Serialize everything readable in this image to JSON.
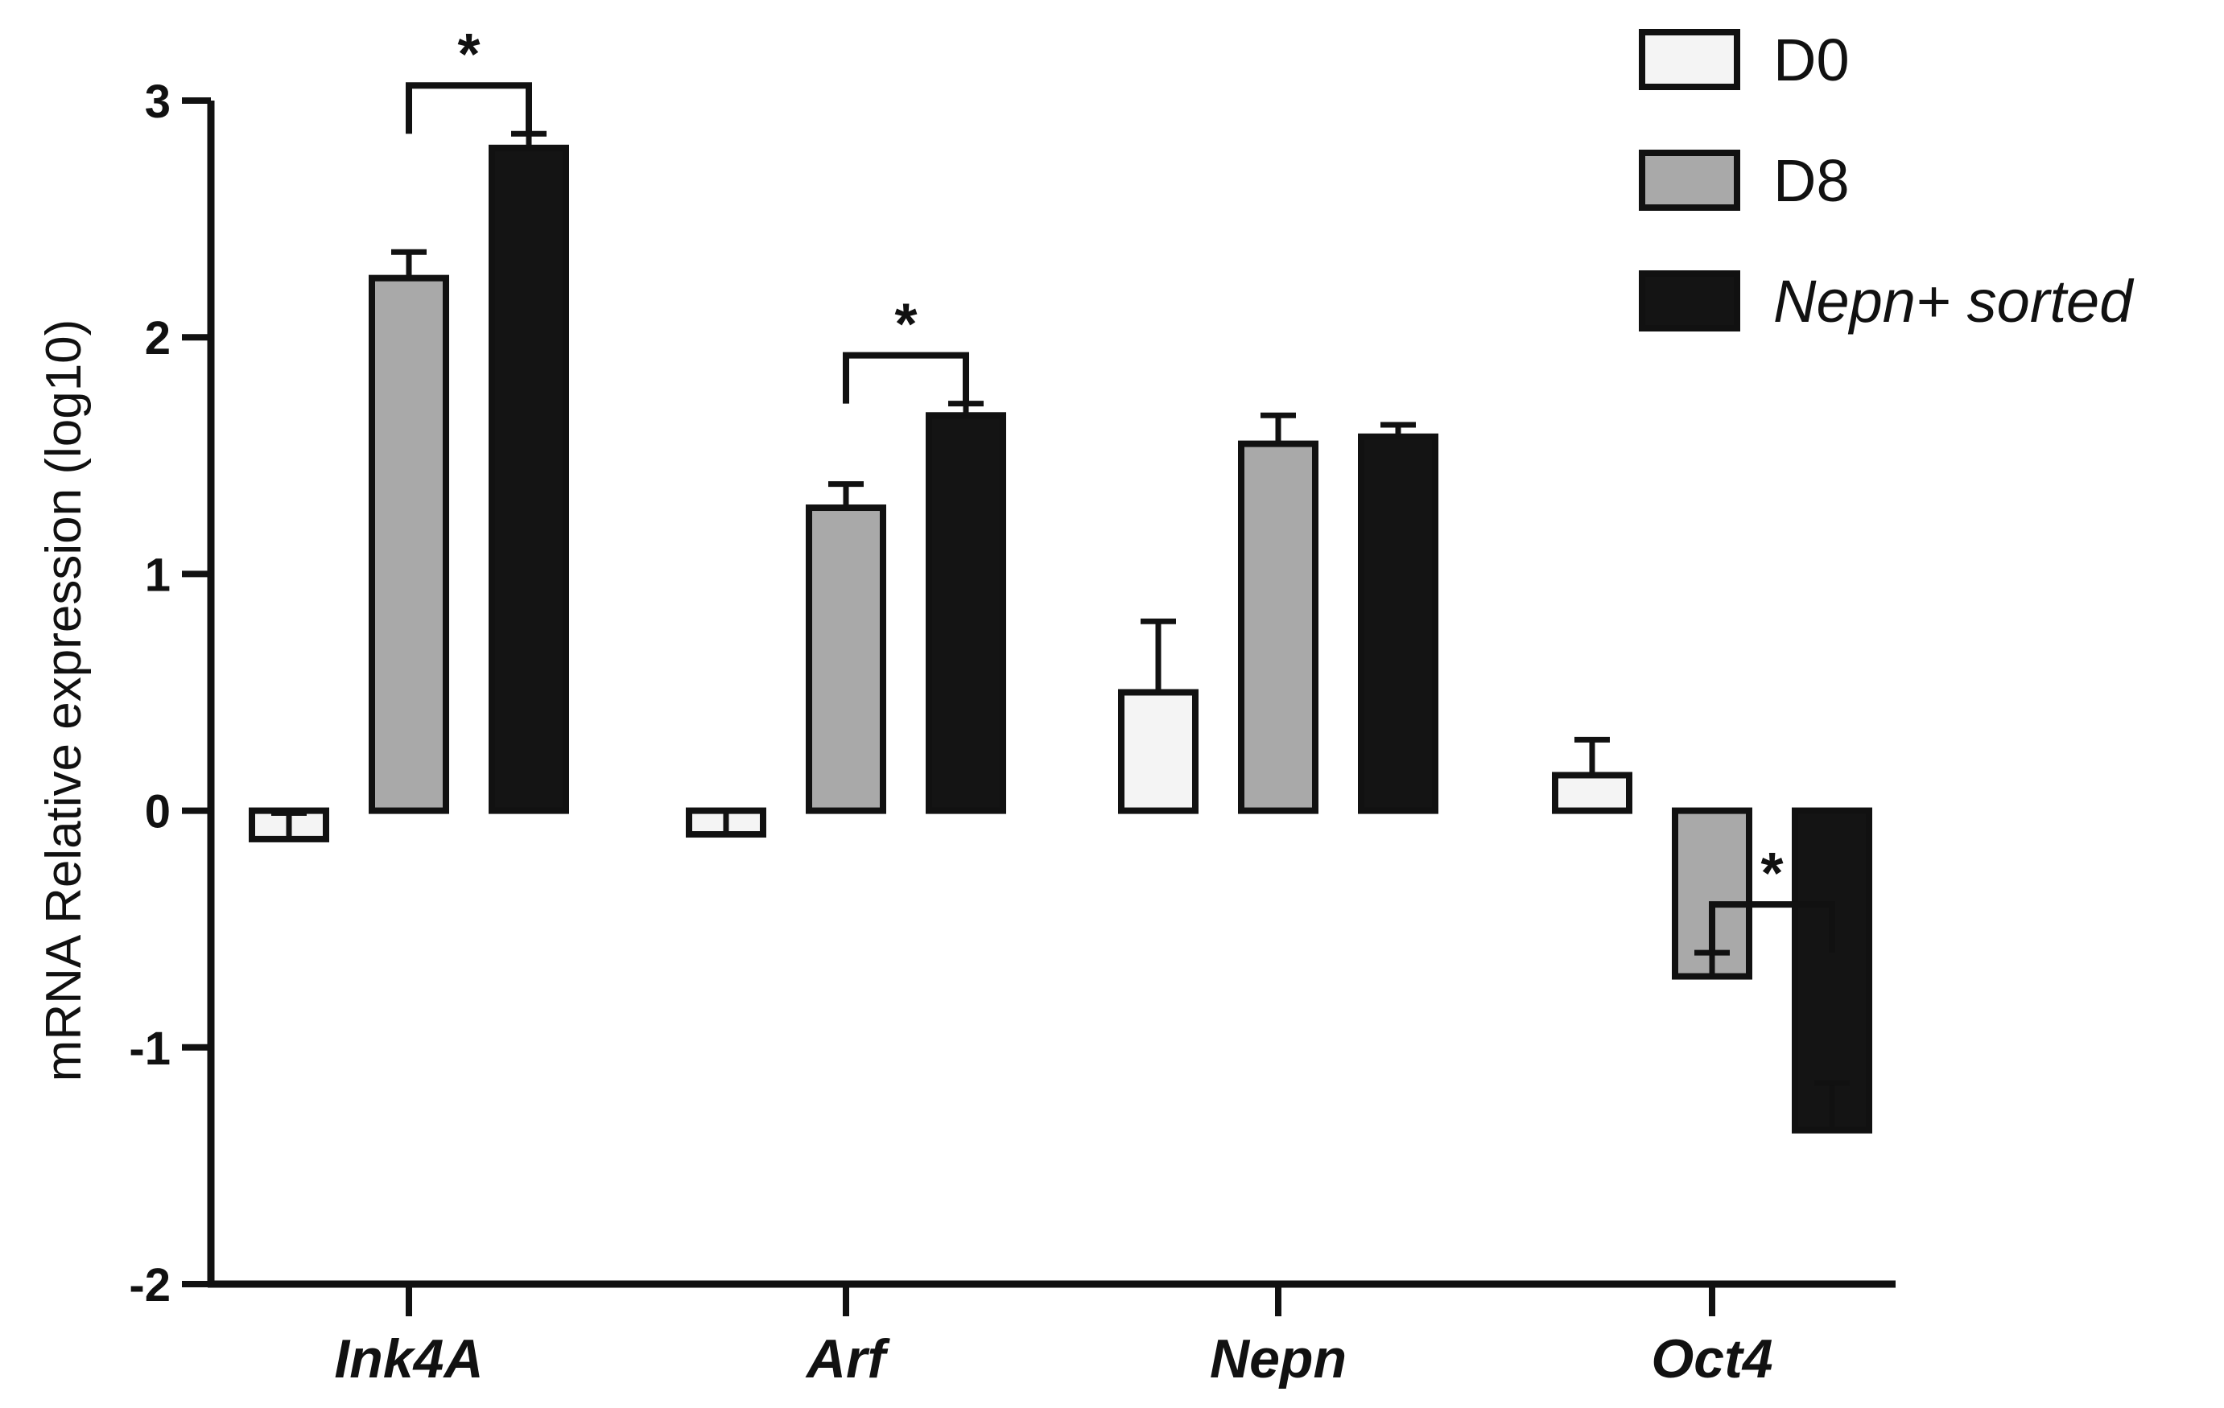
{
  "chart_data": {
    "type": "bar",
    "title": "",
    "xlabel": "",
    "ylabel": "mRNA Relative expression (log10)",
    "ylim": [
      -2,
      3
    ],
    "yticks": [
      -2,
      -1,
      0,
      1,
      2,
      3
    ],
    "ytick_labels": [
      "-2",
      "-1",
      "0",
      "1",
      "2",
      "3"
    ],
    "categories": [
      "Ink4A",
      "Arf",
      "Nepn",
      "Oct4"
    ],
    "series": [
      {
        "name": "D0",
        "italic": false,
        "color": "#f4f4f4",
        "values": [
          -0.12,
          -0.1,
          0.5,
          0.15
        ],
        "errors": [
          0.11,
          0.1,
          0.3,
          0.15
        ]
      },
      {
        "name": "D8",
        "italic": false,
        "color": "#a9a9a9",
        "values": [
          2.25,
          1.28,
          1.55,
          -0.7
        ],
        "errors": [
          0.11,
          0.1,
          0.12,
          0.1
        ]
      },
      {
        "name": "Nepn+ sorted",
        "italic": true,
        "color": "#141414",
        "values": [
          2.8,
          1.67,
          1.58,
          -1.35
        ],
        "errors": [
          0.06,
          0.05,
          0.05,
          0.2
        ]
      }
    ],
    "significance": [
      {
        "category": "Ink4A",
        "between": [
          "D8",
          "Nepn+ sorted"
        ],
        "label": "*"
      },
      {
        "category": "Arf",
        "between": [
          "D8",
          "Nepn+ sorted"
        ],
        "label": "*"
      },
      {
        "category": "Oct4",
        "between": [
          "D8",
          "Nepn+ sorted"
        ],
        "label": "*"
      }
    ],
    "legend_position": "top-right",
    "grid": false
  }
}
